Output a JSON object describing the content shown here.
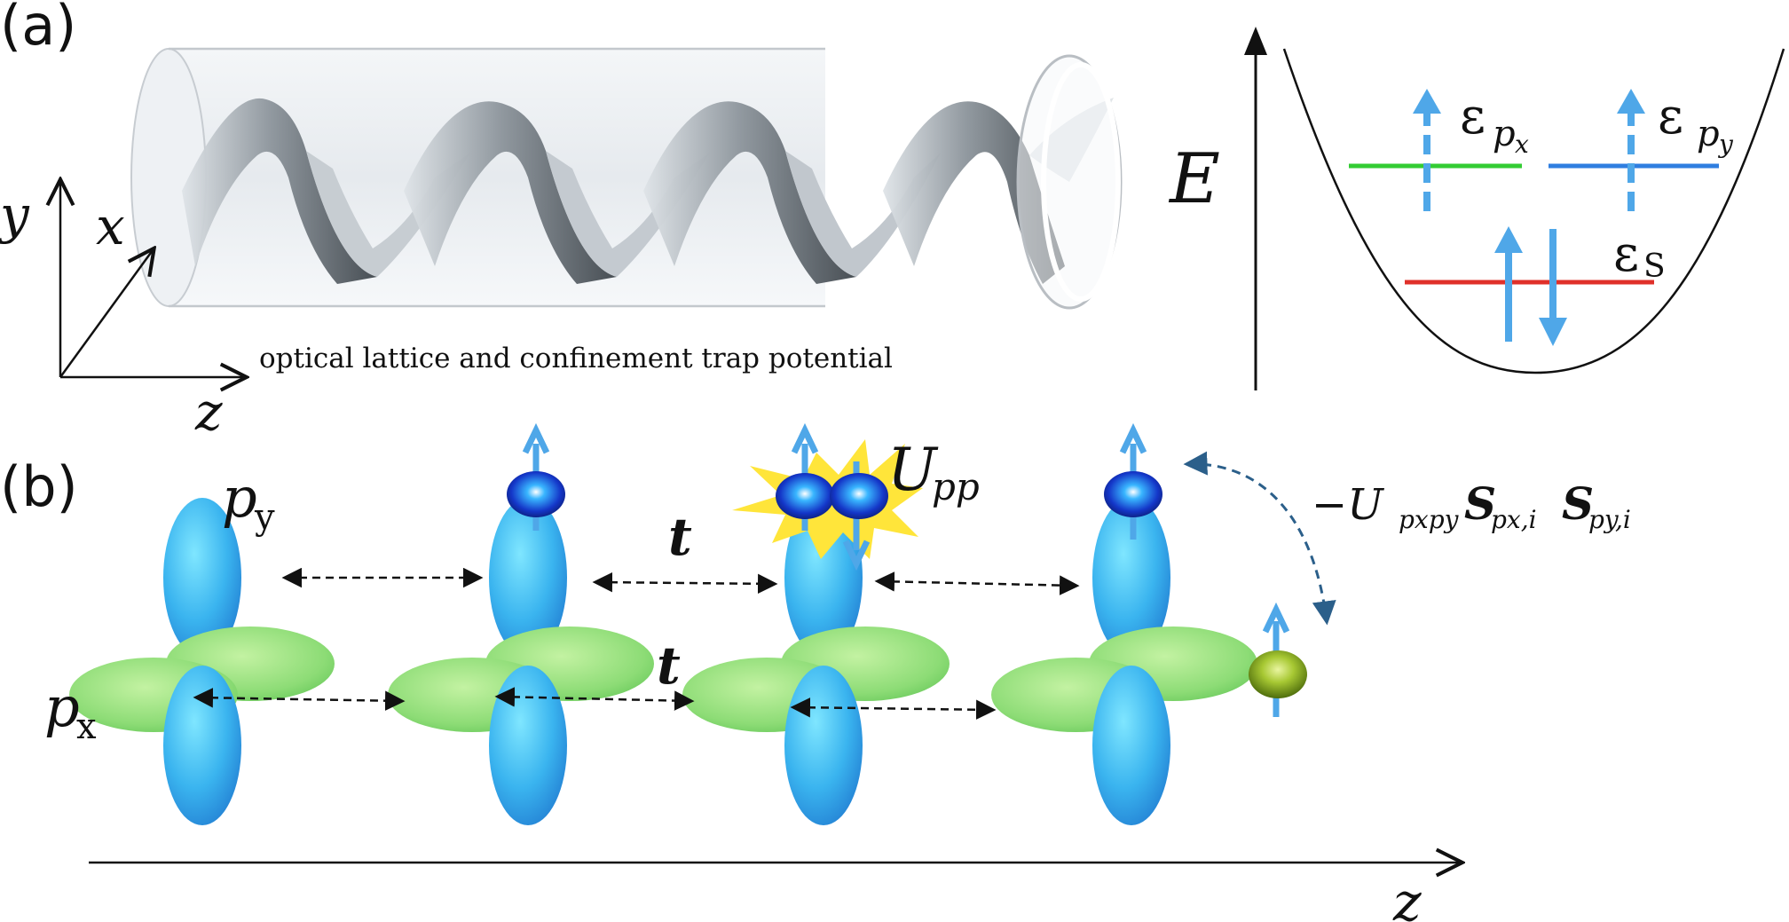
{
  "panel_a": {
    "label": "(a)",
    "axes": {
      "y": "y",
      "x": "x",
      "z": "z"
    },
    "caption": "optical lattice and confinement trap potential",
    "energy": {
      "axis_label": "E",
      "level_px_label": "ε",
      "level_px_sub": "p",
      "level_px_subsub": "x",
      "level_py_label": "ε",
      "level_py_sub": "p",
      "level_py_subsub": "y",
      "level_s_label": "ε",
      "level_s_sub": "S",
      "colors": {
        "px": "#33cc33",
        "py": "#2f7ee0",
        "s": "#e0302a",
        "arrow": "#4fa7e8"
      }
    }
  },
  "panel_b": {
    "label": "(b)",
    "orbital_py": {
      "p": "p",
      "sub": "y"
    },
    "orbital_px": {
      "p": "p",
      "sub": "x"
    },
    "hopping_top": "t",
    "hopping_bottom": "t",
    "interaction": {
      "U": "U",
      "sub": "pp"
    },
    "spin_coupling": {
      "prefix": "−U",
      "sub": "pxpy",
      "s1": "S",
      "s1_sub": "px,i",
      "s2": "S",
      "s2_sub": "py,i"
    },
    "z_axis": "z",
    "colors": {
      "py_lobe": "#3fb8ef",
      "px_lobe": "#8ee07a",
      "electron": "#1436c8",
      "green_electron": "#7fae1e",
      "spin_arrow": "#4fa7e8",
      "burst": "#ffe53a"
    }
  }
}
